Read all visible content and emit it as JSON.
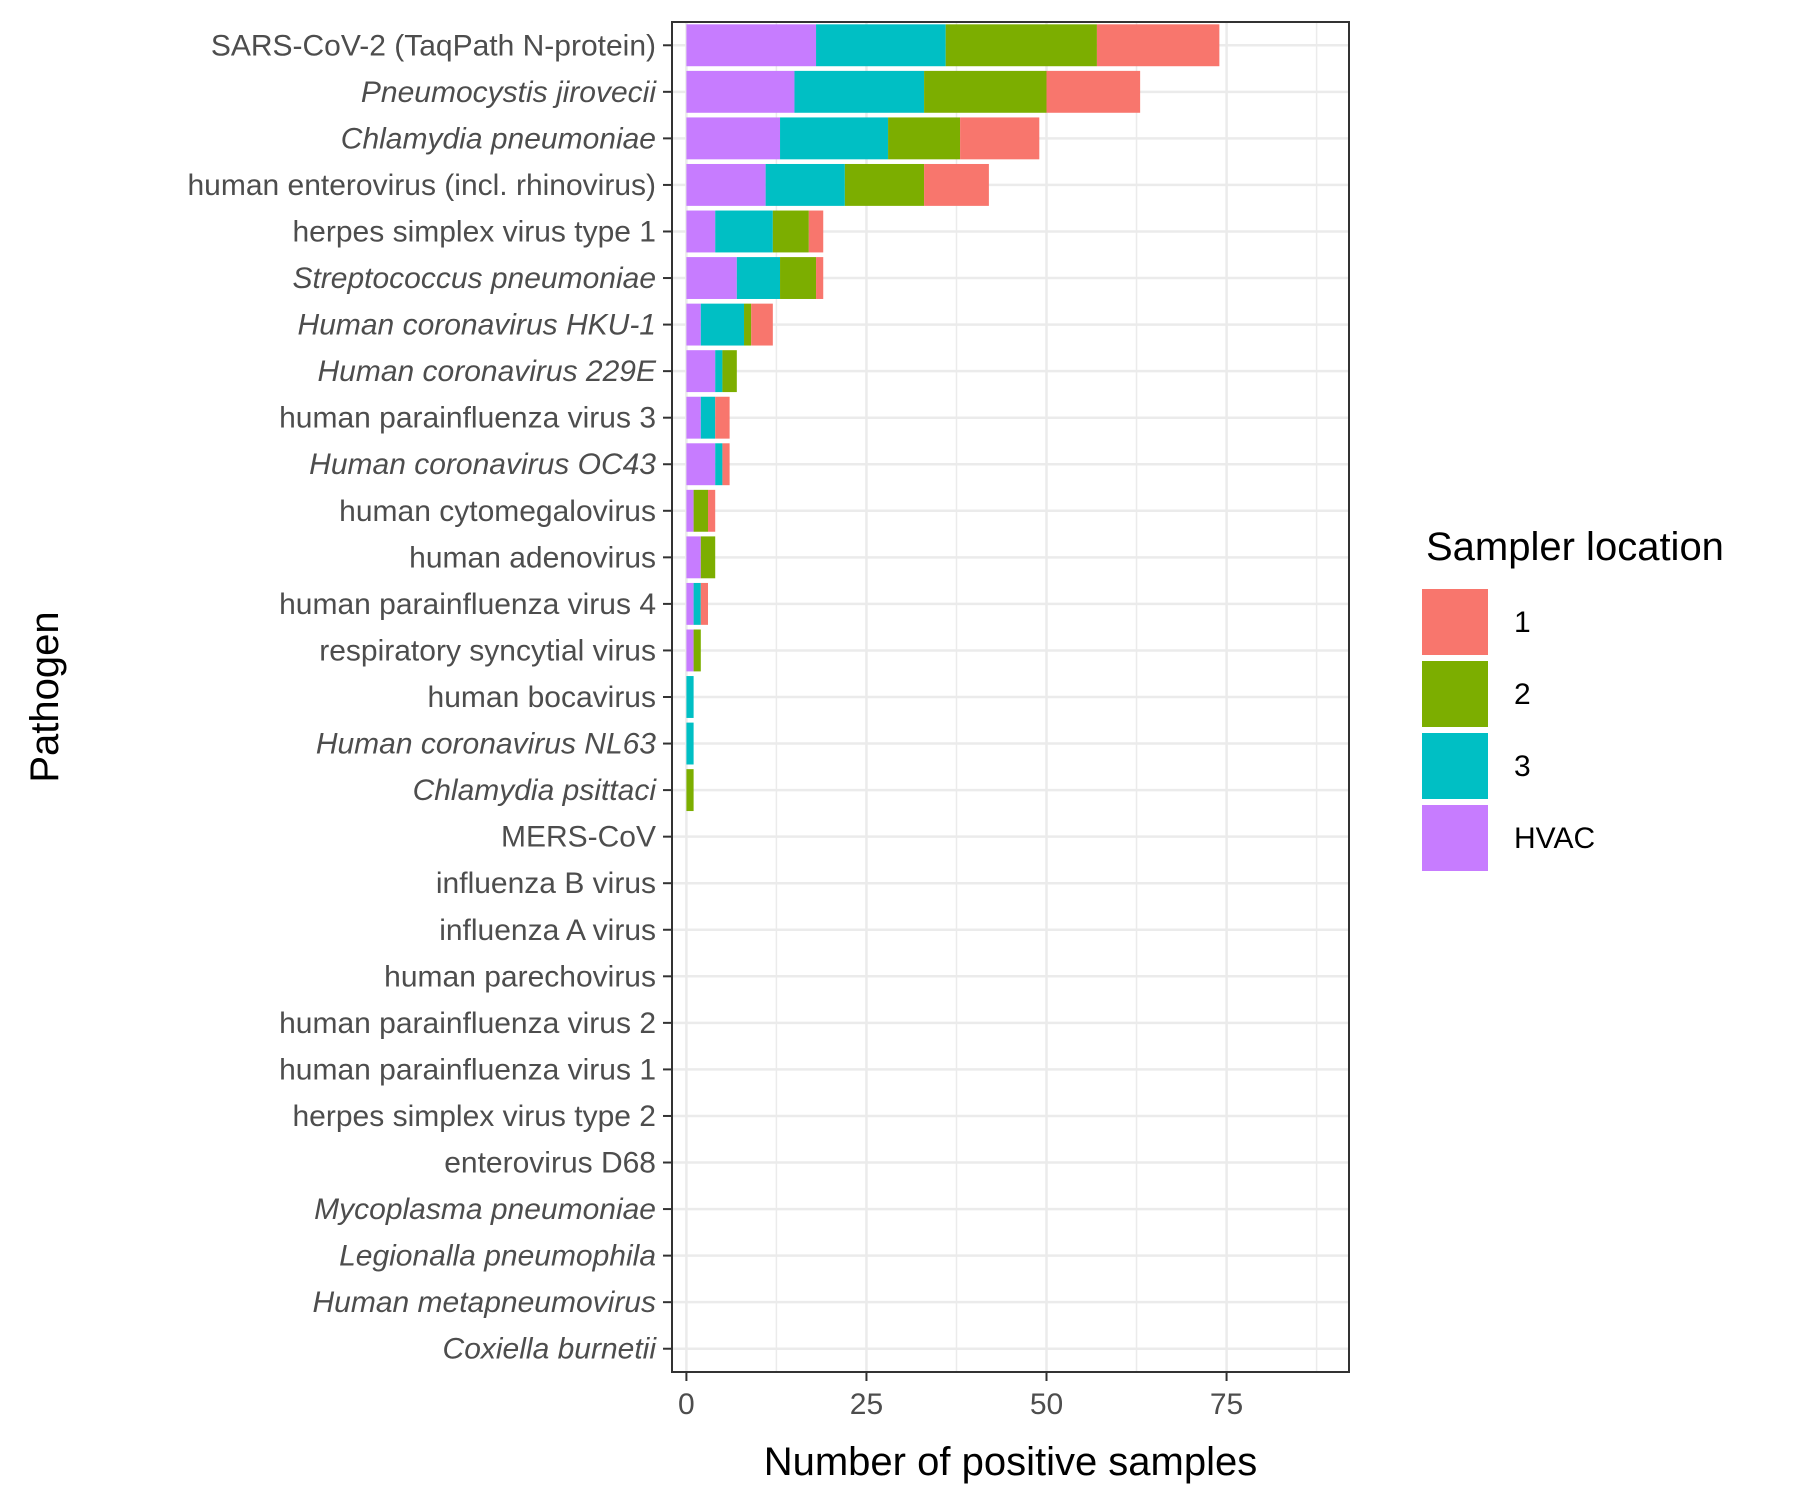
{
  "chart_data": {
    "type": "bar",
    "orientation": "horizontal",
    "stacked": true,
    "xlabel": "Number of positive samples",
    "ylabel": "Pathogen",
    "xlim": [
      -2,
      92
    ],
    "xticks": [
      0,
      25,
      50,
      75
    ],
    "grid": true,
    "legend": {
      "title": "Sampler location",
      "placement": "right",
      "entries": [
        "1",
        "2",
        "3",
        "HVAC"
      ]
    },
    "categories": [
      {
        "label": "SARS-CoV-2 (TaqPath N-protein)",
        "italic": false
      },
      {
        "label": "Pneumocystis jirovecii",
        "italic": true
      },
      {
        "label": "Chlamydia pneumoniae",
        "italic": true
      },
      {
        "label": "human enterovirus (incl. rhinovirus)",
        "italic": false
      },
      {
        "label": "herpes simplex virus type 1",
        "italic": false
      },
      {
        "label": "Streptococcus pneumoniae",
        "italic": true
      },
      {
        "label": "Human coronavirus HKU-1",
        "italic": true
      },
      {
        "label": "Human coronavirus 229E",
        "italic": true
      },
      {
        "label": "human parainfluenza virus 3",
        "italic": false
      },
      {
        "label": "Human coronavirus OC43",
        "italic": true
      },
      {
        "label": "human cytomegalovirus",
        "italic": false
      },
      {
        "label": "human adenovirus",
        "italic": false
      },
      {
        "label": "human parainfluenza virus 4",
        "italic": false
      },
      {
        "label": "respiratory syncytial virus",
        "italic": false
      },
      {
        "label": "human bocavirus",
        "italic": false
      },
      {
        "label": "Human coronavirus NL63",
        "italic": true
      },
      {
        "label": "Chlamydia psittaci",
        "italic": true
      },
      {
        "label": "MERS-CoV",
        "italic": false
      },
      {
        "label": "influenza B virus",
        "italic": false
      },
      {
        "label": "influenza A virus",
        "italic": false
      },
      {
        "label": "human parechovirus",
        "italic": false
      },
      {
        "label": "human parainfluenza virus 2",
        "italic": false
      },
      {
        "label": "human parainfluenza virus 1",
        "italic": false
      },
      {
        "label": "herpes simplex virus type 2",
        "italic": false
      },
      {
        "label": "enterovirus D68",
        "italic": false
      },
      {
        "label": "Mycoplasma pneumoniae",
        "italic": true
      },
      {
        "label": "Legionalla pneumophila",
        "italic": true
      },
      {
        "label": "Human metapneumovirus",
        "italic": true
      },
      {
        "label": "Coxiella burnetii",
        "italic": true
      }
    ],
    "stack_order": [
      "HVAC",
      "3",
      "2",
      "1"
    ],
    "series": [
      {
        "name": "1",
        "color": "#F8766D",
        "values": [
          17,
          13,
          11,
          9,
          2,
          1,
          3,
          0,
          2,
          1,
          1,
          0,
          1,
          0,
          0,
          0,
          0,
          0,
          0,
          0,
          0,
          0,
          0,
          0,
          0,
          0,
          0,
          0,
          0
        ]
      },
      {
        "name": "2",
        "color": "#7CAE00",
        "values": [
          21,
          17,
          10,
          11,
          5,
          5,
          1,
          2,
          0,
          0,
          2,
          2,
          0,
          1,
          0,
          0,
          1,
          0,
          0,
          0,
          0,
          0,
          0,
          0,
          0,
          0,
          0,
          0,
          0
        ]
      },
      {
        "name": "3",
        "color": "#00BFC4",
        "values": [
          18,
          18,
          15,
          11,
          8,
          6,
          6,
          1,
          2,
          1,
          0,
          0,
          1,
          0,
          1,
          1,
          0,
          0,
          0,
          0,
          0,
          0,
          0,
          0,
          0,
          0,
          0,
          0,
          0
        ]
      },
      {
        "name": "HVAC",
        "color": "#C77CFF",
        "values": [
          18,
          15,
          13,
          11,
          4,
          7,
          2,
          4,
          2,
          4,
          1,
          2,
          1,
          1,
          0,
          0,
          0,
          0,
          0,
          0,
          0,
          0,
          0,
          0,
          0,
          0,
          0,
          0,
          0
        ]
      }
    ]
  }
}
